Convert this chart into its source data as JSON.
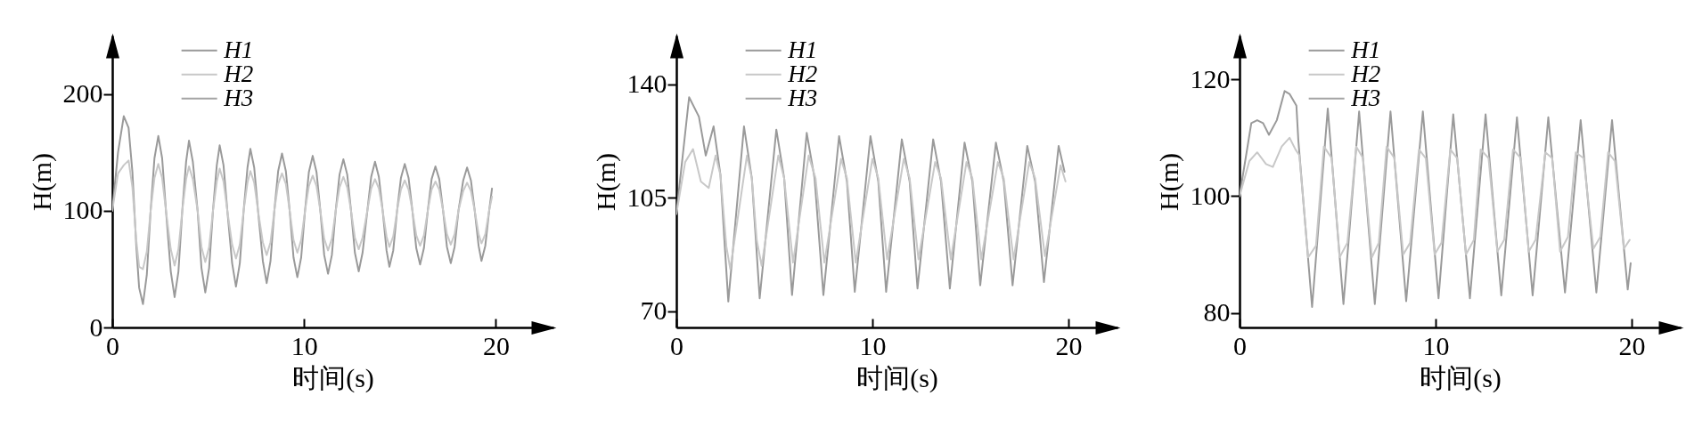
{
  "chart_data": [
    {
      "type": "line",
      "xlabel": "时间(s)",
      "ylabel": "H(m)",
      "xlim": [
        0,
        23
      ],
      "xticks": [
        0,
        10,
        20
      ],
      "ylim": [
        0,
        250
      ],
      "yticks": [
        0,
        100,
        200
      ],
      "legend": "top left",
      "x": [
        0,
        0.3,
        0.6,
        0.85,
        1.05,
        1.25,
        1.4,
        1.6,
        1.8,
        2.0,
        2.2,
        2.4,
        2.6,
        2.8,
        3.05,
        3.25,
        3.45,
        3.65,
        3.85,
        4.0,
        4.2,
        4.45,
        4.65,
        4.85,
        5.05,
        5.25,
        5.45,
        5.6,
        5.8,
        6.0,
        6.25,
        6.45,
        6.65,
        6.85,
        7.05,
        7.2,
        7.4,
        7.6,
        7.85,
        8.05,
        8.25,
        8.45,
        8.65,
        8.85,
        9.05,
        9.25,
        9.45,
        9.65,
        9.85,
        10.05,
        10.25,
        10.45,
        10.65,
        10.85,
        11.05,
        11.25,
        11.45,
        11.65,
        11.85,
        12.05,
        12.25,
        12.45,
        12.65,
        12.85,
        13.05,
        13.3,
        13.5,
        13.7,
        13.9,
        14.1,
        14.3,
        14.45,
        14.65,
        14.85,
        15.05,
        15.25,
        15.45,
        15.65,
        15.85,
        16.05,
        16.25,
        16.45,
        16.65,
        16.85,
        17.05,
        17.25,
        17.45,
        17.65,
        17.85,
        18.05,
        18.3,
        18.5,
        18.7,
        18.9,
        19.1,
        19.25,
        19.45,
        19.65,
        19.8
      ],
      "series": [
        {
          "name": "H1",
          "color": "#9a9a9a",
          "values": [
            100,
            150,
            181,
            171,
            133,
            70,
            34,
            20,
            45,
            100,
            145,
            164,
            145,
            100,
            48,
            26,
            48,
            100,
            142,
            160,
            142,
            100,
            51,
            30,
            51,
            100,
            139,
            156,
            139,
            100,
            55,
            35,
            55,
            100,
            137,
            153,
            137,
            100,
            57,
            38,
            57,
            100,
            134,
            149,
            134,
            100,
            60,
            43,
            60,
            100,
            133,
            147,
            133,
            100,
            62,
            46,
            62,
            100,
            131,
            144,
            131,
            100,
            64,
            48,
            64,
            100,
            129,
            142,
            129,
            100,
            66,
            52,
            66,
            100,
            128,
            140,
            128,
            100,
            68,
            54,
            68,
            100,
            127,
            138,
            127,
            100,
            69,
            55,
            69,
            100,
            126,
            137,
            126,
            100,
            70,
            57,
            70,
            100,
            119
          ]
        },
        {
          "name": "H2",
          "color": "#c8c8c8",
          "values": [
            100,
            132,
            139,
            143,
            120,
            75,
            52,
            50,
            65,
            100,
            128,
            140,
            128,
            100,
            67,
            53,
            67,
            100,
            127,
            138,
            127,
            100,
            69,
            56,
            69,
            100,
            125,
            136,
            125,
            100,
            71,
            59,
            71,
            100,
            124,
            134,
            124,
            100,
            73,
            62,
            73,
            100,
            123,
            132,
            123,
            100,
            75,
            64,
            75,
            100,
            121,
            130,
            121,
            100,
            76,
            66,
            76,
            100,
            120,
            129,
            120,
            100,
            77,
            67,
            77,
            100,
            119,
            127,
            119,
            100,
            78,
            69,
            78,
            100,
            118,
            126,
            118,
            100,
            79,
            70,
            79,
            100,
            118,
            125,
            118,
            100,
            80,
            71,
            80,
            100,
            117,
            124,
            117,
            100,
            80,
            72,
            80,
            100,
            112
          ]
        },
        {
          "name": "H3",
          "color": "#a3a3a3",
          "values": [
            null,
            null,
            null,
            null,
            null,
            null,
            null,
            null,
            null,
            null,
            null,
            null,
            null,
            null,
            null,
            null,
            null,
            null,
            null,
            null,
            null,
            null,
            null,
            null,
            null,
            null,
            null,
            null,
            null,
            null,
            null,
            null,
            null,
            null,
            null,
            null,
            null,
            null,
            null,
            null,
            null,
            null,
            null,
            null,
            null,
            null,
            null,
            null,
            null,
            null,
            null,
            null,
            null,
            null,
            null,
            null,
            null,
            null,
            null,
            null,
            null,
            null,
            null,
            null,
            null,
            null,
            null,
            null,
            null,
            null,
            null,
            null,
            null,
            null,
            null,
            null,
            null,
            null,
            null,
            null,
            null,
            null,
            null,
            null,
            null,
            null,
            null,
            null,
            null,
            null,
            null,
            null,
            null,
            null,
            null,
            null,
            null,
            null,
            null
          ]
        }
      ]
    },
    {
      "type": "line",
      "xlabel": "时间(s)",
      "ylabel": "H(m)",
      "xlim": [
        0,
        22.5
      ],
      "xticks": [
        0,
        10,
        20
      ],
      "ylim": [
        65,
        155
      ],
      "yticks": [
        70,
        105,
        140
      ],
      "legend": "top left",
      "series": [
        {
          "name": "H1",
          "color": "#9a9a9a",
          "x": [
            0,
            0.65,
            1.15,
            1.5,
            1.9,
            2.25,
            2.45,
            2.65,
            3.45,
            3.85,
            4.25,
            5.1,
            5.5,
            5.9,
            6.65,
            7.05,
            7.5,
            8.3,
            8.7,
            9.1,
            9.9,
            10.3,
            10.7,
            11.5,
            11.9,
            12.3,
            13.1,
            13.5,
            13.95,
            14.7,
            15.1,
            15.5,
            16.3,
            16.7,
            17.15,
            17.9,
            18.3,
            18.75,
            19.5,
            19.8
          ],
          "values": [
            100,
            136,
            130,
            118,
            127,
            112,
            92,
            73,
            127,
            111,
            74,
            126,
            111,
            75,
            125,
            111,
            75,
            124,
            110,
            76,
            124,
            110,
            76,
            123,
            110,
            77,
            123,
            110,
            77,
            122,
            110,
            78,
            122,
            110,
            78,
            121,
            110,
            79,
            121,
            113
          ]
        },
        {
          "name": "H2",
          "color": "#c8c8c8",
          "x": [
            0,
            0.45,
            0.85,
            1.05,
            1.25,
            1.65,
            2.0,
            2.25,
            2.55,
            2.75,
            3.6,
            3.85,
            4.1,
            4.35,
            5.2,
            5.5,
            5.95,
            6.75,
            7.1,
            7.55,
            8.4,
            8.7,
            9.15,
            10.0,
            10.3,
            10.75,
            11.6,
            11.9,
            12.35,
            13.2,
            13.5,
            14.0,
            14.8,
            15.1,
            15.55,
            16.4,
            16.7,
            17.2,
            18.0,
            18.3,
            18.8,
            19.6,
            19.85
          ],
          "values": [
            100,
            116,
            120,
            115,
            110,
            108,
            118,
            112,
            90,
            83,
            118,
            111,
            92,
            84,
            118,
            111,
            85,
            118,
            111,
            85,
            117,
            111,
            85,
            117,
            111,
            86,
            117,
            111,
            86,
            116,
            111,
            86,
            116,
            111,
            86,
            116,
            111,
            86,
            116,
            111,
            87,
            115,
            110
          ]
        },
        {
          "name": "H3",
          "color": "#a3a3a3"
        }
      ]
    },
    {
      "type": "line",
      "xlabel": "时间(s)",
      "ylabel": "H(m)",
      "xlim": [
        0,
        22.5
      ],
      "xticks": [
        0,
        10,
        20
      ],
      "ylim": [
        77.5,
        127.5
      ],
      "yticks": [
        80,
        100,
        120
      ],
      "legend": "top left",
      "series": [
        {
          "name": "H1",
          "color": "#9a9a9a",
          "x": [
            0,
            0.6,
            0.9,
            1.2,
            1.5,
            1.9,
            2.3,
            2.55,
            2.9,
            3.0,
            3.7,
            4.5,
            5.3,
            6.1,
            6.9,
            7.7,
            8.5,
            9.35,
            10.15,
            10.9,
            11.75,
            12.55,
            13.35,
            14.15,
            14.95,
            15.75,
            16.6,
            17.4,
            18.2,
            19.0,
            19.8,
            19.95
          ],
          "values": [
            100,
            112.5,
            113,
            112.5,
            110.5,
            113,
            118,
            117.5,
            115.5,
            109.5,
            81,
            115,
            81.5,
            114.5,
            81.5,
            114.5,
            82,
            114.5,
            82.5,
            114,
            82.5,
            114,
            83,
            113.5,
            83,
            113.5,
            83.5,
            113,
            83.5,
            113,
            84,
            88.5
          ]
        },
        {
          "name": "H2",
          "color": "#c8c8c8",
          "x": [
            0,
            0.5,
            0.9,
            1.35,
            1.7,
            2.15,
            2.55,
            2.85,
            3.05,
            3.5,
            3.9,
            4.3,
            4.7,
            5.1,
            5.5,
            5.95,
            6.3,
            6.75,
            7.1,
            7.5,
            7.9,
            8.35,
            8.7,
            9.15,
            9.5,
            9.95,
            10.3,
            10.75,
            11.1,
            11.55,
            11.95,
            12.3,
            12.7,
            13.15,
            13.5,
            13.95,
            14.35,
            14.75,
            15.1,
            15.6,
            15.95,
            16.35,
            16.75,
            17.15,
            17.55,
            18.05,
            18.4,
            18.8,
            19.15,
            19.6,
            19.9
          ],
          "values": [
            100,
            106,
            107.5,
            105.5,
            105,
            108.5,
            110,
            108,
            107,
            89.5,
            91.5,
            108.5,
            106.5,
            89.5,
            92,
            108.5,
            106.5,
            89.5,
            92,
            108.5,
            106.5,
            90,
            92,
            108,
            106.5,
            90,
            92,
            108,
            106.5,
            90,
            92.5,
            108,
            106.5,
            90.5,
            92.5,
            108,
            106.5,
            90.5,
            92.5,
            107.5,
            106.5,
            90.5,
            93,
            107.5,
            106.5,
            91,
            93,
            107.5,
            106,
            91,
            92.5
          ]
        },
        {
          "name": "H3",
          "color": "#a3a3a3"
        }
      ]
    }
  ]
}
